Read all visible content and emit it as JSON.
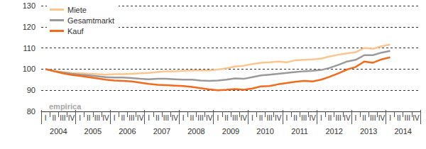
{
  "chart_data": {
    "type": "line",
    "annotations": [
      "empirica"
    ],
    "categories": [
      "I",
      "II",
      "III",
      "IV",
      "I",
      "II",
      "III",
      "IV",
      "I",
      "II",
      "III",
      "IV",
      "I",
      "II",
      "III",
      "IV",
      "I",
      "II",
      "III",
      "IV",
      "I",
      "II",
      "III",
      "IV",
      "I",
      "II",
      "III",
      "IV",
      "I",
      "II",
      "III",
      "IV",
      "I",
      "II",
      "III",
      "IV",
      "I",
      "II",
      "III",
      "IV",
      "I",
      "II",
      "III",
      "IV"
    ],
    "category_groups": [
      "2004",
      "2004",
      "2004",
      "2004",
      "2005",
      "2005",
      "2005",
      "2005",
      "2006",
      "2006",
      "2006",
      "2006",
      "2007",
      "2007",
      "2007",
      "2007",
      "2008",
      "2008",
      "2008",
      "2008",
      "2009",
      "2009",
      "2009",
      "2009",
      "2010",
      "2010",
      "2010",
      "2010",
      "2011",
      "2011",
      "2011",
      "2011",
      "2012",
      "2012",
      "2012",
      "2012",
      "2013",
      "2013",
      "2013",
      "2013",
      "2014",
      "2014",
      "2014",
      "2014"
    ],
    "series": [
      {
        "name": "Miete",
        "color": "#fbc58f",
        "values": [
          100,
          99.2,
          98.6,
          98.2,
          98,
          97.8,
          97.6,
          97.4,
          97.6,
          97.6,
          97.8,
          98,
          98.2,
          98.6,
          99,
          99,
          99.2,
          99.4,
          99.4,
          99.4,
          99.8,
          100.4,
          101.2,
          101.6,
          102.4,
          103,
          103.2,
          103.6,
          103.2,
          104.2,
          104.4,
          104.6,
          105,
          106,
          106.8,
          107.4,
          108,
          110,
          109.6,
          110.8,
          111.6,
          null,
          null,
          null
        ]
      },
      {
        "name": "Gesamtmarkt",
        "color": "#9a9a9a",
        "values": [
          100,
          99,
          98.4,
          97.8,
          97.4,
          97,
          96.6,
          96.2,
          96,
          96,
          95.8,
          95.4,
          95.2,
          95.4,
          95.4,
          95.2,
          95,
          95,
          94.6,
          94.4,
          94.6,
          95,
          95.6,
          95.4,
          96.2,
          97,
          97.4,
          97.8,
          98.2,
          98.6,
          99,
          99.2,
          99.6,
          100.6,
          102,
          103.6,
          104.4,
          106.6,
          106.6,
          107.8,
          108.6,
          null,
          null,
          null
        ]
      },
      {
        "name": "Kauf",
        "color": "#f26b1d",
        "values": [
          100,
          99,
          98,
          97.3,
          96.8,
          96.2,
          95.6,
          95,
          94.6,
          94.4,
          94.2,
          93.6,
          93,
          92.6,
          92.4,
          92.2,
          92,
          91.6,
          91,
          90.4,
          90,
          90.2,
          90.6,
          90.2,
          90.8,
          91.8,
          92,
          92.8,
          93.4,
          94,
          94.4,
          94.2,
          95,
          96.4,
          98,
          99.8,
          101,
          103.6,
          103,
          104.6,
          105.6,
          null,
          null,
          null
        ]
      }
    ],
    "ylim": [
      80,
      130
    ],
    "yticks": [
      80,
      90,
      100,
      110,
      120,
      130
    ],
    "grid": true,
    "legend": "top-left"
  }
}
